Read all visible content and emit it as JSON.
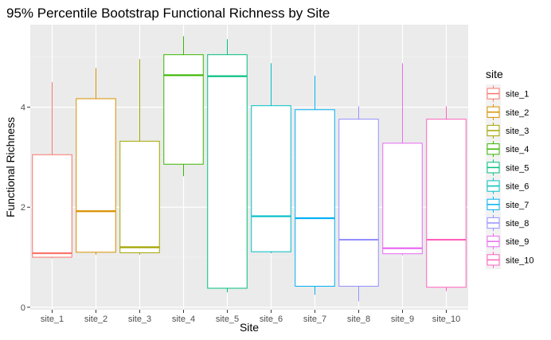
{
  "chart_data": {
    "type": "boxplot",
    "title": "95% Percentile Bootstrap Functional Richness by Site",
    "xlabel": "Site",
    "ylabel": "Functional Richness",
    "ylim": [
      -0.05,
      5.65
    ],
    "yticks": [
      0,
      2,
      4
    ],
    "grid": true,
    "legend": {
      "title": "site",
      "position": "right"
    },
    "categories": [
      "site_1",
      "site_2",
      "site_3",
      "site_4",
      "site_5",
      "site_6",
      "site_7",
      "site_8",
      "site_9",
      "site_10"
    ],
    "series": [
      {
        "name": "site_1",
        "color": "#F8766D",
        "min": 0.98,
        "q1": 1.0,
        "median": 1.08,
        "q3": 3.05,
        "max": 4.5
      },
      {
        "name": "site_2",
        "color": "#D89000",
        "min": 1.05,
        "q1": 1.1,
        "median": 1.92,
        "q3": 4.17,
        "max": 4.78
      },
      {
        "name": "site_3",
        "color": "#A3A500",
        "min": 1.05,
        "q1": 1.09,
        "median": 1.2,
        "q3": 3.32,
        "max": 4.96
      },
      {
        "name": "site_4",
        "color": "#39B600",
        "min": 2.62,
        "q1": 2.86,
        "median": 4.64,
        "q3": 5.05,
        "max": 5.42
      },
      {
        "name": "site_5",
        "color": "#00BF7D",
        "min": 0.3,
        "q1": 0.38,
        "median": 4.62,
        "q3": 5.05,
        "max": 5.36
      },
      {
        "name": "site_6",
        "color": "#00BFC4",
        "min": 1.08,
        "q1": 1.11,
        "median": 1.82,
        "q3": 4.03,
        "max": 4.88
      },
      {
        "name": "site_7",
        "color": "#00B0F6",
        "min": 0.25,
        "q1": 0.42,
        "median": 1.78,
        "q3": 3.95,
        "max": 4.63
      },
      {
        "name": "site_8",
        "color": "#9590FF",
        "min": 0.12,
        "q1": 0.42,
        "median": 1.35,
        "q3": 3.76,
        "max": 4.02
      },
      {
        "name": "site_9",
        "color": "#E76BF3",
        "min": 1.04,
        "q1": 1.07,
        "median": 1.18,
        "q3": 3.28,
        "max": 4.88
      },
      {
        "name": "site_10",
        "color": "#FF62BC",
        "min": 0.32,
        "q1": 0.4,
        "median": 1.35,
        "q3": 3.76,
        "max": 4.02
      }
    ]
  }
}
